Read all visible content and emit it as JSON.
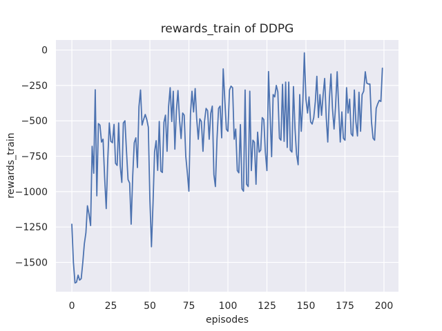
{
  "chart_data": {
    "type": "line",
    "title": "rewards_train of DDPG",
    "xlabel": "episodes",
    "ylabel": "rewards_train",
    "grid": true,
    "legend": "none",
    "xlim": [
      -10.2,
      209.3
    ],
    "ylim": [
      -1707,
      71
    ],
    "xticks": [
      0,
      25,
      50,
      75,
      100,
      125,
      150,
      175,
      200
    ],
    "xtick_labels": [
      "0",
      "25",
      "50",
      "75",
      "100",
      "125",
      "150",
      "175",
      "200"
    ],
    "yticks": [
      0,
      -250,
      -500,
      -750,
      -1000,
      -1250,
      -1500
    ],
    "ytick_labels": [
      "0",
      "−250",
      "−500",
      "−750",
      "−1000",
      "−1250",
      "−1500"
    ],
    "colors": {
      "line": "#4C72B0",
      "plot_background": "#EAEAF2",
      "figure_background": "#FFFFFF",
      "grid": "#FFFFFF",
      "text": "#262626"
    },
    "series": [
      {
        "name": "rewards_train",
        "x_start": 0,
        "x_step": 1,
        "values": [
          -1230,
          -1500,
          -1645,
          -1640,
          -1590,
          -1625,
          -1615,
          -1500,
          -1370,
          -1290,
          -1100,
          -1160,
          -1240,
          -680,
          -870,
          -280,
          -1030,
          -520,
          -530,
          -650,
          -630,
          -900,
          -1120,
          -780,
          -515,
          -645,
          -655,
          -525,
          -800,
          -815,
          -515,
          -820,
          -935,
          -515,
          -500,
          -710,
          -915,
          -940,
          -1230,
          -885,
          -655,
          -620,
          -830,
          -400,
          -282,
          -530,
          -490,
          -455,
          -490,
          -545,
          -1050,
          -1390,
          -1080,
          -720,
          -640,
          -850,
          -505,
          -855,
          -865,
          -510,
          -460,
          -715,
          -400,
          -266,
          -505,
          -291,
          -700,
          -430,
          -286,
          -495,
          -625,
          -445,
          -460,
          -750,
          -870,
          -997,
          -450,
          -291,
          -437,
          -272,
          -486,
          -630,
          -486,
          -505,
          -715,
          -505,
          -412,
          -428,
          -630,
          -446,
          -396,
          -880,
          -964,
          -630,
          -412,
          -396,
          -620,
          -133,
          -350,
          -560,
          -574,
          -282,
          -255,
          -266,
          -630,
          -558,
          -851,
          -867,
          -526,
          -980,
          -997,
          -282,
          -948,
          -964,
          -291,
          -851,
          -637,
          -652,
          -948,
          -580,
          -721,
          -707,
          -477,
          -491,
          -721,
          -851,
          -152,
          -446,
          -753,
          -315,
          -331,
          -250,
          -296,
          -623,
          -637,
          -242,
          -645,
          -226,
          -688,
          -226,
          -707,
          -721,
          -258,
          -558,
          -737,
          -810,
          -315,
          -574,
          -363,
          -20,
          -347,
          -445,
          -331,
          -507,
          -523,
          -477,
          -363,
          -185,
          -477,
          -315,
          -461,
          -315,
          -201,
          -477,
          -650,
          -347,
          -169,
          -412,
          -558,
          -396,
          -153,
          -412,
          -650,
          -437,
          -623,
          -637,
          -266,
          -445,
          -347,
          -591,
          -607,
          -282,
          -507,
          -607,
          -298,
          -574,
          -315,
          -291,
          -153,
          -234,
          -240,
          -240,
          -507,
          -623,
          -637,
          -412,
          -380,
          -355,
          -363,
          -128
        ]
      }
    ]
  }
}
